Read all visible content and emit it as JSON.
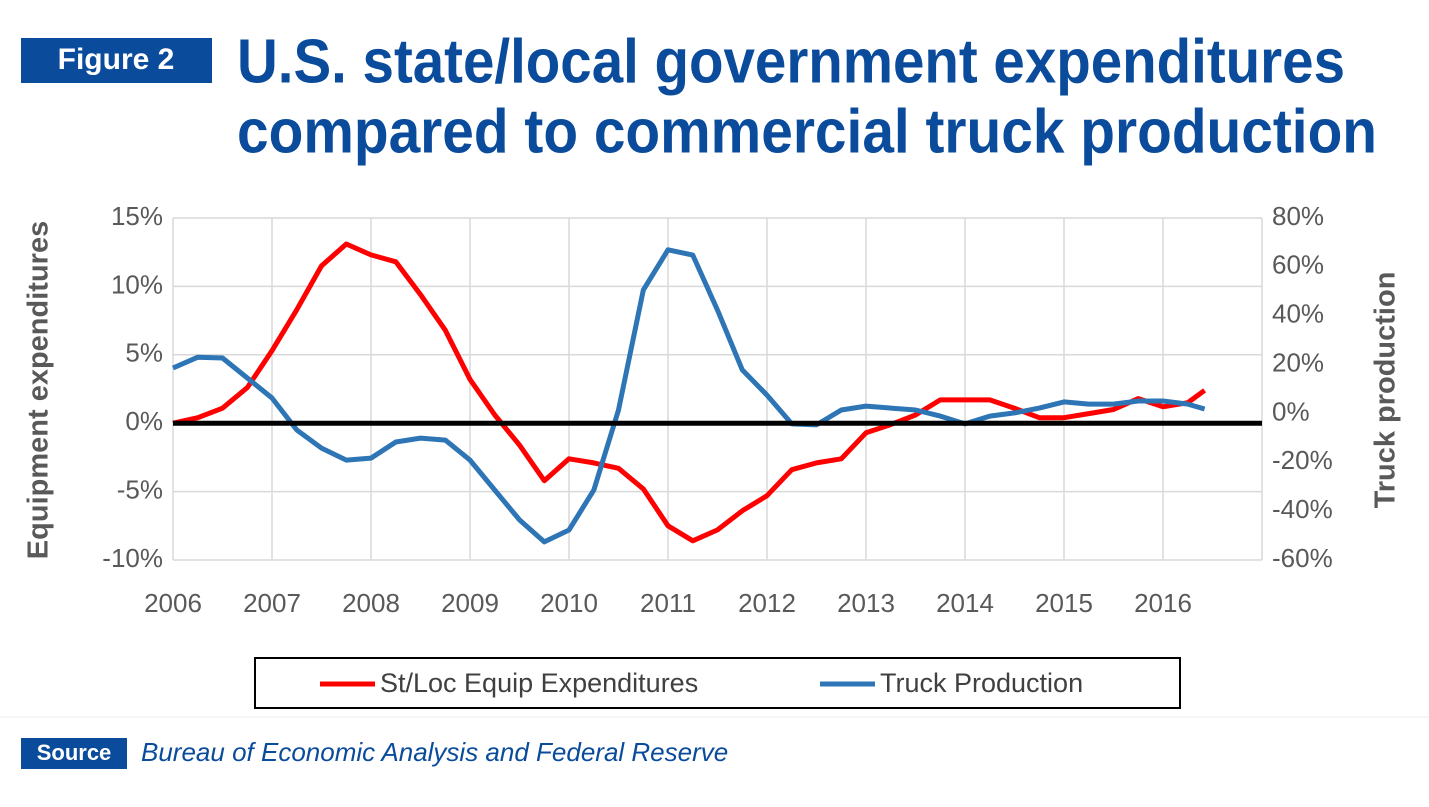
{
  "chart_data": {
    "type": "line",
    "figure_label": "Figure 2",
    "title_lines": [
      "U.S. state/local government expenditures",
      "compared to commercial truck production"
    ],
    "y_label": "Equipment expenditures",
    "y2_label": "Truck production",
    "source_label": "Source",
    "source": "Bureau of Economic Analysis and Federal Reserve",
    "x": [
      2006,
      2006.25,
      2006.5,
      2006.75,
      2007,
      2007.25,
      2007.5,
      2007.75,
      2008,
      2008.25,
      2008.5,
      2008.75,
      2009,
      2009.25,
      2009.5,
      2009.75,
      2010,
      2010.25,
      2010.5,
      2010.75,
      2011,
      2011.25,
      2011.5,
      2011.75,
      2012,
      2012.25,
      2012.5,
      2012.75,
      2013,
      2013.25,
      2013.5,
      2013.75,
      2014,
      2014.25,
      2014.5,
      2014.75,
      2015,
      2015.25,
      2015.5,
      2015.75,
      2016,
      2016.25,
      2016.42
    ],
    "series": [
      {
        "name": "St/Loc Equip Expenditures",
        "color": "#ff0000",
        "axis": "y",
        "values": [
          0,
          0.4,
          1.1,
          2.6,
          5.3,
          8.3,
          11.5,
          13.1,
          12.3,
          11.8,
          9.4,
          6.8,
          3.2,
          0.6,
          -1.6,
          -4.2,
          -2.6,
          -2.9,
          -3.3,
          -4.8,
          -7.5,
          -8.6,
          -7.8,
          -6.4,
          -5.3,
          -3.4,
          -2.9,
          -2.6,
          -0.7,
          -0.1,
          0.6,
          1.7,
          1.7,
          1.7,
          1.1,
          0.4,
          0.4,
          0.7,
          1.0,
          1.8,
          1.2,
          1.5,
          2.4
        ]
      },
      {
        "name": "Truck Production",
        "color": "#2e75b6",
        "axis": "y2",
        "values": [
          18.6,
          23,
          22.7,
          14.5,
          6.3,
          -6.8,
          -14.2,
          -19.1,
          -18.3,
          -11.7,
          -10.1,
          -10.9,
          -19.1,
          -31.4,
          -43.6,
          -52.6,
          -47.7,
          -31.4,
          1.4,
          50.5,
          67,
          64.8,
          42.3,
          17.8,
          7.5,
          -4.3,
          -4.7,
          1.4,
          3,
          2.2,
          1.4,
          -1.1,
          -4.3,
          -1.1,
          0.2,
          2.2,
          4.7,
          3.8,
          3.8,
          5.1,
          5.1,
          3.8,
          1.8
        ]
      }
    ],
    "xlim": [
      2006,
      2017
    ],
    "xticks": [
      2006,
      2007,
      2008,
      2009,
      2010,
      2011,
      2012,
      2013,
      2014,
      2015,
      2016
    ],
    "ylim": [
      -10,
      15
    ],
    "yticks": [
      {
        "value": -10,
        "label": "-10%"
      },
      {
        "value": -5,
        "label": "-5%"
      },
      {
        "value": 0,
        "label": "0%"
      },
      {
        "value": 5,
        "label": "5%"
      },
      {
        "value": 10,
        "label": "10%"
      },
      {
        "value": 15,
        "label": "15%"
      }
    ],
    "y2lim": [
      -60,
      80
    ],
    "y2ticks": [
      {
        "value": -60,
        "label": "-60%"
      },
      {
        "value": -40,
        "label": "-40%"
      },
      {
        "value": -20,
        "label": "-20%"
      },
      {
        "value": 0,
        "label": "0%"
      },
      {
        "value": 20,
        "label": "20%"
      },
      {
        "value": 40,
        "label": "40%"
      },
      {
        "value": 60,
        "label": "60%"
      },
      {
        "value": 80,
        "label": "80%"
      }
    ],
    "grid": true,
    "legend": "bottom"
  }
}
